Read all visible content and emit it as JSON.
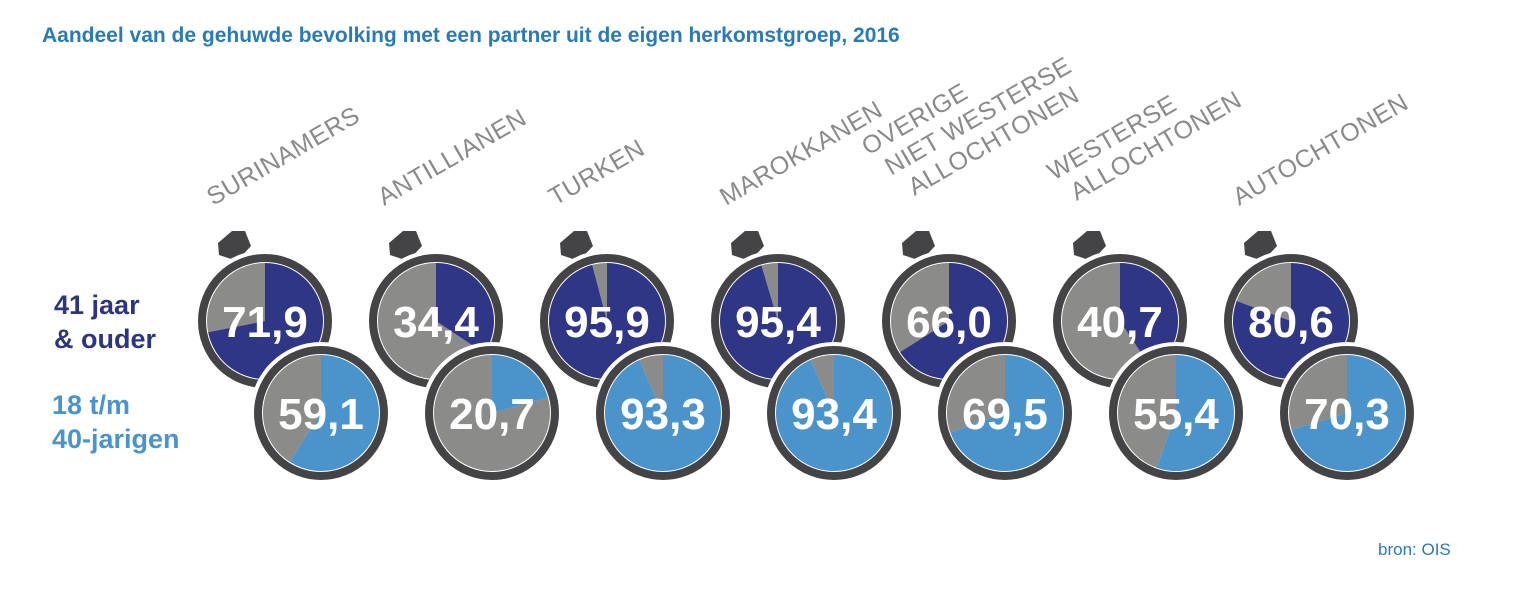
{
  "title": "Aandeel van de gehuwde bevolking met een partner uit de eigen herkomstgroep, 2016",
  "source": "bron: OIS",
  "legend": {
    "older": [
      "41 jaar",
      "& ouder"
    ],
    "younger": [
      "18 t/m",
      "40-jarigen"
    ]
  },
  "colors": {
    "older": "#2f3685",
    "younger": "#4a93cb",
    "rest": "#8b8b89",
    "ring": "#444446",
    "title": "#2a7ab8",
    "label": "#8a8a8a"
  },
  "chart_data": {
    "type": "pie",
    "unit": "%",
    "categories": [
      [
        "SURINAMERS"
      ],
      [
        "ANTILLIANEN"
      ],
      [
        "TURKEN"
      ],
      [
        "MAROKKANEN"
      ],
      [
        "OVERIGE",
        "NIET WESTERSE",
        "ALLOCHTONEN"
      ],
      [
        "WESTERSE",
        "ALLOCHTONEN"
      ],
      [
        "AUTOCHTONEN"
      ]
    ],
    "series": [
      {
        "name": "41 jaar & ouder",
        "values": [
          71.9,
          34.4,
          95.9,
          95.4,
          66.0,
          40.7,
          80.6
        ],
        "labels": [
          "71,9",
          "34,4",
          "95,9",
          "95,4",
          "66,0",
          "40,7",
          "80,6"
        ]
      },
      {
        "name": "18 t/m 40-jarigen",
        "values": [
          59.1,
          20.7,
          93.3,
          93.4,
          69.5,
          55.4,
          70.3
        ],
        "labels": [
          "59,1",
          "20,7",
          "93,3",
          "93,4",
          "69,5",
          "55,4",
          "70,3"
        ]
      }
    ]
  }
}
